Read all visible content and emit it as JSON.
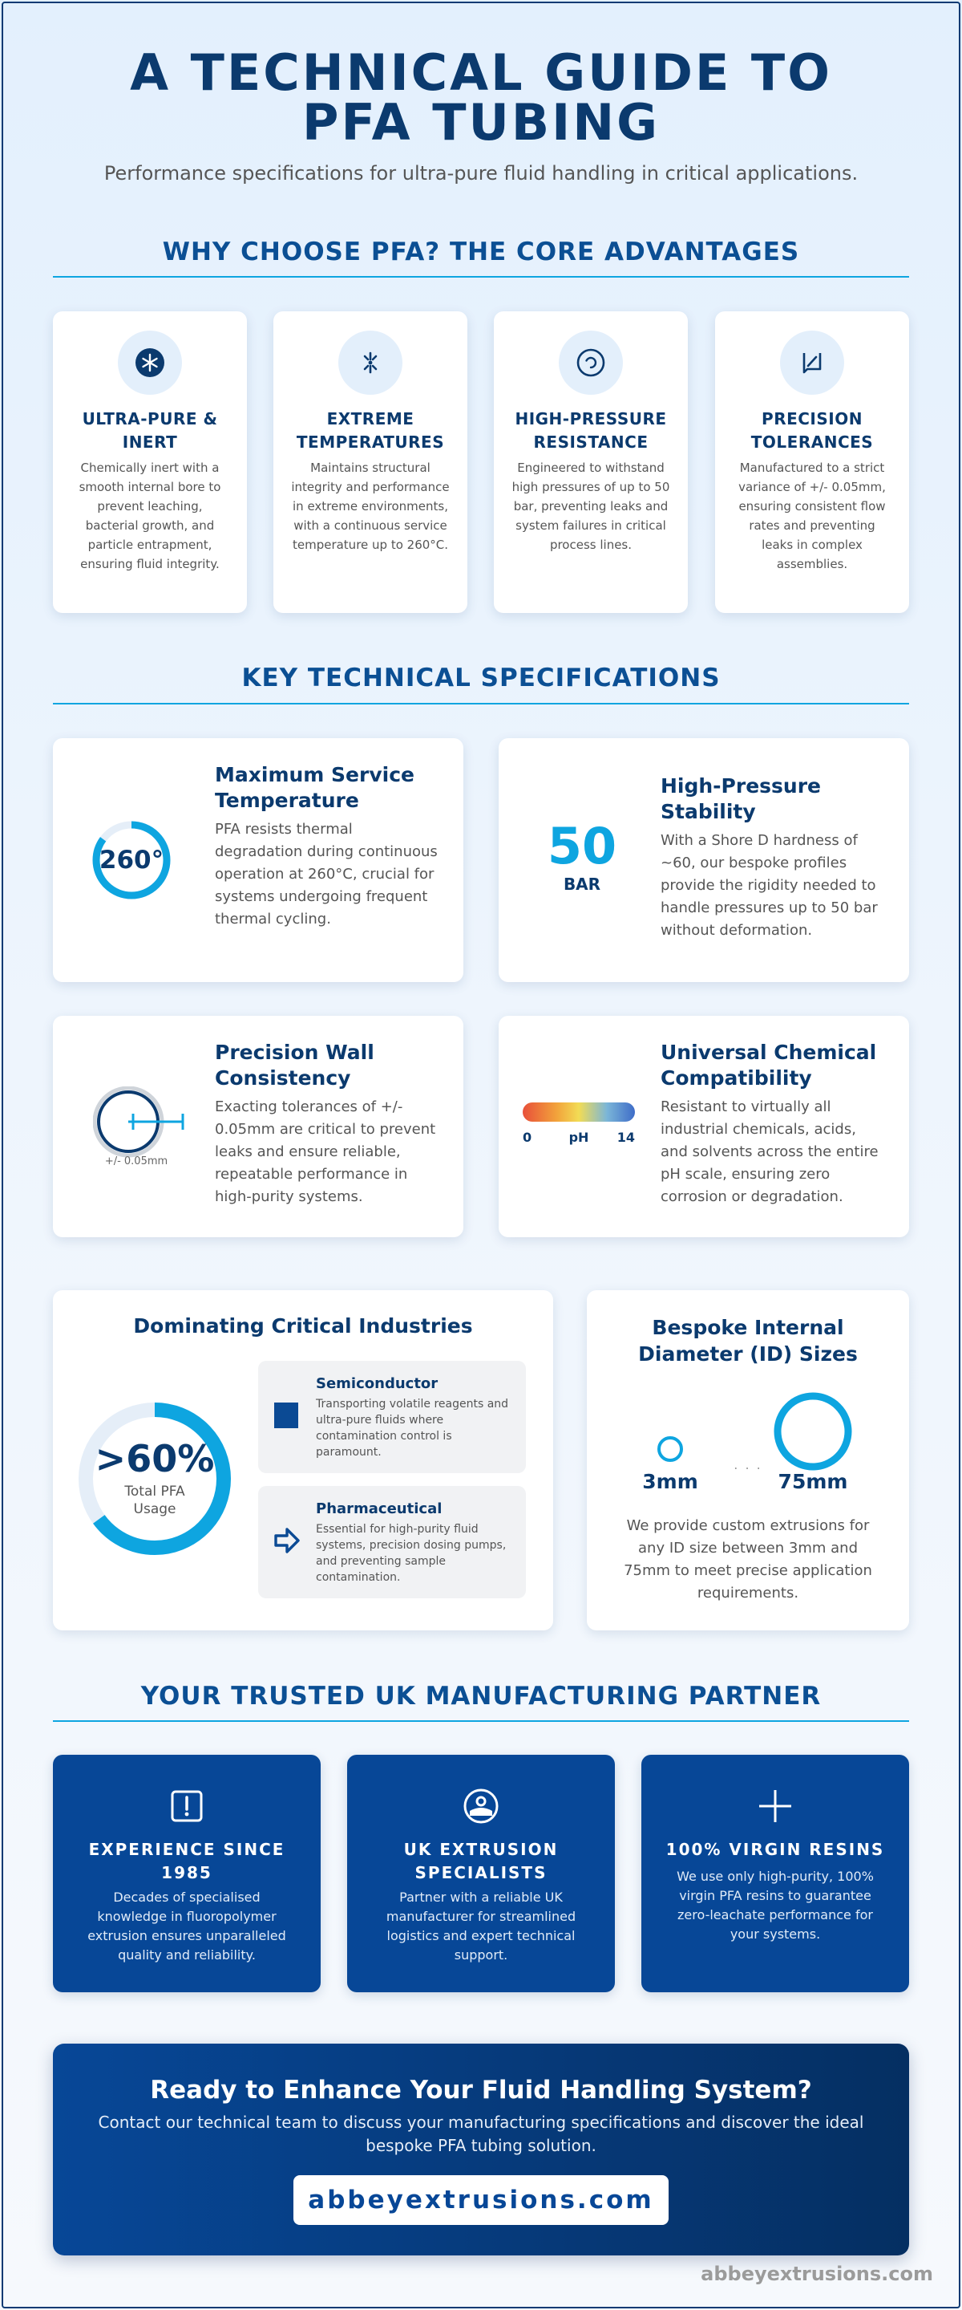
{
  "header": {
    "title": "A TECHNICAL GUIDE TO PFA TUBING",
    "subtitle": "Performance specifications for ultra-pure fluid handling in critical applications."
  },
  "advantages": {
    "heading": "WHY CHOOSE PFA? THE CORE ADVANTAGES",
    "items": [
      {
        "icon": "atom-icon",
        "title": "ULTRA-PURE & INERT",
        "body": "Chemically inert with a smooth internal bore to prevent leaching, bacterial growth, and particle entrapment, ensuring fluid integrity."
      },
      {
        "icon": "snowflake-sun-icon",
        "title": "EXTREME TEMPERATURES",
        "body": "Maintains structural integrity and performance in extreme environments, with a continuous service temperature up to 260°C."
      },
      {
        "icon": "gauge-icon",
        "title": "HIGH-PRESSURE RESISTANCE",
        "body": "Engineered to withstand high pressures of up to 50 bar, preventing leaks and system failures in critical process lines."
      },
      {
        "icon": "ruler-precision-icon",
        "title": "PRECISION TOLERANCES",
        "body": "Manufactured to a strict variance of +/- 0.05mm, ensuring consistent flow rates and preventing leaks in complex assemblies."
      }
    ]
  },
  "specs": {
    "heading": "KEY TECHNICAL SPECIFICATIONS",
    "temperature": {
      "value": "260°",
      "ring_fraction": 0.85,
      "title": "Maximum Service Temperature",
      "body": "PFA resists thermal degradation during continuous operation at 260°C, crucial for systems undergoing frequent thermal cycling."
    },
    "pressure": {
      "value": "50",
      "unit": "BAR",
      "title": "High-Pressure Stability",
      "body": "With a Shore D hardness of ~60, our bespoke profiles provide the rigidity needed to handle pressures up to 50 bar without deformation."
    },
    "wall": {
      "tolerance_label": "+/- 0.05mm",
      "title": "Precision Wall Consistency",
      "body": "Exacting tolerances of +/- 0.05mm are critical to prevent leaks and ensure reliable, repeatable performance in high-purity systems."
    },
    "chemical": {
      "scale_min": "0",
      "scale_label": "pH",
      "scale_max": "14",
      "title": "Universal Chemical Compatibility",
      "body": "Resistant to virtually all industrial chemicals, acids, and solvents across the entire pH scale, ensuring zero corrosion or degradation."
    }
  },
  "industries": {
    "title": "Dominating Critical Industries",
    "stat_value": ">60%",
    "stat_fraction": 0.65,
    "stat_label": "Total PFA Usage",
    "items": [
      {
        "icon": "chip-square-icon",
        "name": "Semiconductor",
        "desc": "Transporting volatile reagents and ultra-pure fluids where contamination control is paramount."
      },
      {
        "icon": "arrow-right-icon",
        "name": "Pharmaceutical",
        "desc": "Essential for high-purity fluid systems, precision dosing pumps, and preventing sample contamination."
      }
    ]
  },
  "id_sizes": {
    "title": "Bespoke Internal Diameter (ID) Sizes",
    "min_label": "3mm",
    "ellipsis": ". . .",
    "max_label": "75mm",
    "body": "We provide custom extrusions for any ID size between 3mm and 75mm to meet precise application requirements."
  },
  "partner": {
    "heading": "YOUR TRUSTED UK MANUFACTURING PARTNER",
    "items": [
      {
        "icon": "thermometer-icon",
        "title": "EXPERIENCE SINCE 1985",
        "body": "Decades of specialised knowledge in fluoropolymer extrusion ensures unparalleled quality and reliability."
      },
      {
        "icon": "extrusion-die-icon",
        "title": "UK EXTRUSION SPECIALISTS",
        "body": "Partner with a reliable UK manufacturer for streamlined logistics and expert technical support."
      },
      {
        "icon": "plus-icon",
        "title": "100% VIRGIN RESINS",
        "body": "We use only high-purity, 100% virgin PFA resins to guarantee zero-leachate performance for your systems."
      }
    ]
  },
  "cta": {
    "title": "Ready to Enhance Your Fluid Handling System?",
    "body": "Contact our technical team to discuss your manufacturing specifications and discover the ideal bespoke PFA tubing solution.",
    "button": "abbeyextrusions.com"
  },
  "footer": {
    "url": "abbeyextrusions.com"
  },
  "colors": {
    "navy": "#0b3a6e",
    "accent": "#0ea5e0",
    "partner_bg": "#074797"
  }
}
